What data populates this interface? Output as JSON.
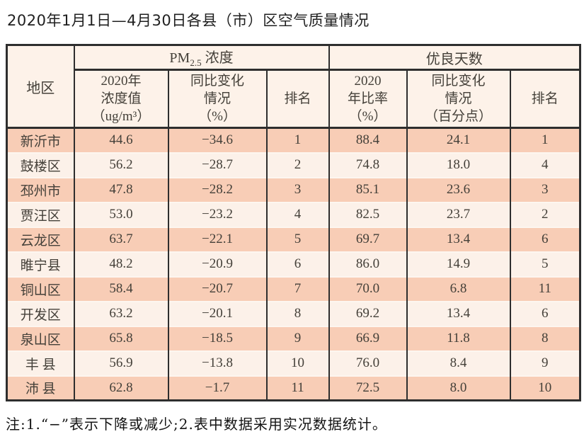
{
  "title": "2020年1月1日—4月30日各县（市）区空气质量情况",
  "note": "注:1.“−”表示下降或减少;2.表中数据采用实况数据统计。",
  "colors": {
    "row_salmon": "#f8cdb6",
    "row_light": "#fcf1e9",
    "header_bg": "#fdf2e9",
    "border": "#2e2e2e"
  },
  "table": {
    "region_header": "地区",
    "groups": {
      "pm": {
        "title_main": "PM",
        "title_sub": "2.5",
        "title_rest": " 浓度"
      },
      "good_days": {
        "title": "优良天数"
      }
    },
    "columns": {
      "conc": [
        "2020年",
        "浓度值",
        "（ug/m³）"
      ],
      "conc_change": [
        "同比变化",
        "情况",
        "（%）"
      ],
      "rank1": "排名",
      "ratio": [
        "2020",
        "年比率",
        "（%）"
      ],
      "ratio_change": [
        "同比变化",
        "情况",
        "（百分点）"
      ],
      "rank2": "排名"
    },
    "rows": [
      [
        "新沂市",
        "44.6",
        "−34.6",
        "1",
        "88.4",
        "24.1",
        "1"
      ],
      [
        "鼓楼区",
        "56.2",
        "−28.7",
        "2",
        "74.8",
        "18.0",
        "4"
      ],
      [
        "邳州市",
        "47.8",
        "−28.2",
        "3",
        "85.1",
        "23.6",
        "3"
      ],
      [
        "贾汪区",
        "53.0",
        "−23.2",
        "4",
        "82.5",
        "23.7",
        "2"
      ],
      [
        "云龙区",
        "63.7",
        "−22.1",
        "5",
        "69.7",
        "13.4",
        "6"
      ],
      [
        "睢宁县",
        "48.2",
        "−20.9",
        "6",
        "86.0",
        "14.9",
        "5"
      ],
      [
        "铜山区",
        "58.4",
        "−20.7",
        "7",
        "70.0",
        "6.8",
        "11"
      ],
      [
        "开发区",
        "63.2",
        "−20.1",
        "8",
        "69.2",
        "13.4",
        "6"
      ],
      [
        "泉山区",
        "65.8",
        "−18.5",
        "9",
        "66.9",
        "11.8",
        "8"
      ],
      [
        "丰 县",
        "56.9",
        "−13.8",
        "10",
        "76.0",
        "8.4",
        "9"
      ],
      [
        "沛 县",
        "62.8",
        "−1.7",
        "11",
        "72.5",
        "8.0",
        "10"
      ]
    ]
  }
}
